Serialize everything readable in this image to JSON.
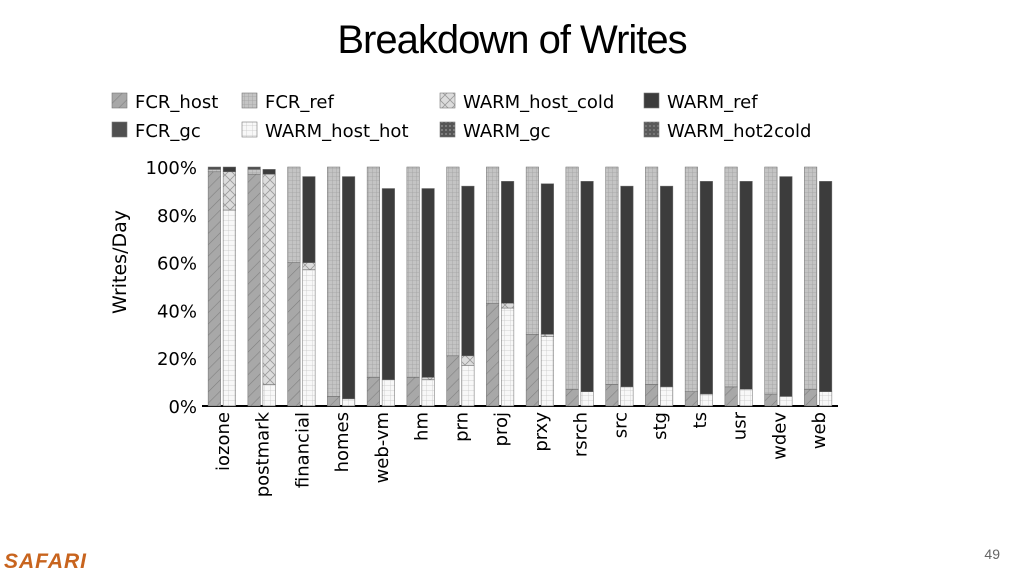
{
  "slide": {
    "title": "Breakdown of Writes",
    "brand": "SAFARI",
    "page_number": "49"
  },
  "chart_data": {
    "type": "bar",
    "stacked": true,
    "ylabel": "Writes/Day",
    "ylim": [
      0,
      100
    ],
    "yticks": [
      "0%",
      "20%",
      "40%",
      "60%",
      "80%",
      "100%"
    ],
    "legend_position": "top",
    "categories": [
      "iozone",
      "postmark",
      "financial",
      "homes",
      "web-vm",
      "hm",
      "prn",
      "proj",
      "prxy",
      "rsrch",
      "src",
      "stg",
      "ts",
      "usr",
      "wdev",
      "web"
    ],
    "fcr_series": [
      {
        "name": "FCR_host",
        "values": [
          98,
          97,
          60,
          4,
          12,
          12,
          21,
          43,
          30,
          7,
          9,
          9,
          6,
          8,
          5,
          7
        ]
      },
      {
        "name": "FCR_ref",
        "values": [
          1,
          2,
          40,
          96,
          88,
          88,
          79,
          57,
          70,
          93,
          91,
          91,
          94,
          92,
          95,
          93
        ]
      },
      {
        "name": "FCR_gc",
        "values": [
          1,
          1,
          0,
          0,
          0,
          0,
          0,
          0,
          0,
          0,
          0,
          0,
          0,
          0,
          0,
          0
        ]
      }
    ],
    "warm_series": [
      {
        "name": "WARM_host_hot",
        "values": [
          82,
          9,
          57,
          3,
          11,
          11,
          17,
          41,
          29,
          6,
          8,
          8,
          5,
          7,
          4,
          6
        ]
      },
      {
        "name": "WARM_host_cold",
        "values": [
          16,
          88,
          3,
          0,
          0,
          1,
          4,
          2,
          1,
          0,
          0,
          0,
          0,
          0,
          0,
          0
        ]
      },
      {
        "name": "WARM_ref",
        "values": [
          2,
          2,
          36,
          93,
          80,
          79,
          71,
          51,
          63,
          88,
          84,
          84,
          89,
          87,
          92,
          88
        ]
      },
      {
        "name": "WARM_gc",
        "values": [
          0,
          0,
          0,
          0,
          0,
          0,
          0,
          0,
          0,
          0,
          0,
          0,
          0,
          0,
          0,
          0
        ]
      },
      {
        "name": "WARM_hot2cold",
        "values": [
          0,
          0,
          0,
          0,
          0,
          0,
          0,
          0,
          0,
          0,
          0,
          0,
          0,
          0,
          0,
          0
        ]
      }
    ],
    "legend": [
      "FCR_host",
      "FCR_ref",
      "WARM_host_cold",
      "WARM_ref",
      "FCR_gc",
      "WARM_host_hot",
      "WARM_gc",
      "WARM_hot2cold"
    ]
  }
}
